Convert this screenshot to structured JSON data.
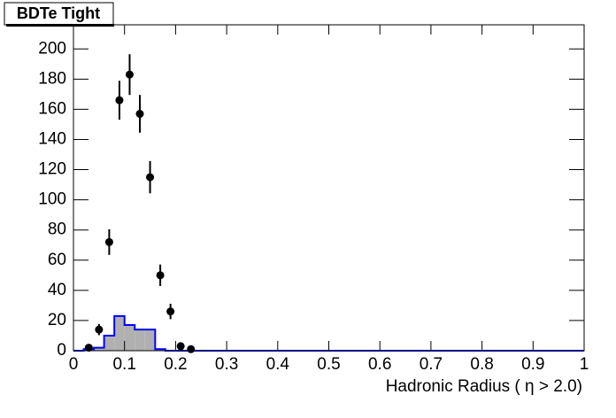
{
  "chart_data": {
    "type": "histogram",
    "title": "BDTe Tight",
    "x_label": "Hadronic Radius ( η > 2.0)",
    "bins": [
      0,
      0.02,
      0.04,
      0.06,
      0.08,
      0.1,
      0.12,
      0.14,
      0.16,
      0.18,
      0.2,
      0.22,
      0.24,
      0.26,
      0.28,
      0.3,
      0.32,
      0.34,
      0.36,
      0.38,
      0.4,
      0.42,
      0.44,
      0.46,
      0.48,
      0.5,
      0.52,
      0.54,
      0.56,
      0.58,
      0.6,
      0.62,
      0.64,
      0.66,
      0.68,
      0.7,
      0.72,
      0.74,
      0.76,
      0.78,
      0.8,
      0.82,
      0.84,
      0.86,
      0.88,
      0.9,
      0.92,
      0.94,
      0.96,
      0.98,
      1
    ],
    "counts": [
      0,
      1,
      2,
      10,
      23,
      17,
      14,
      14,
      1,
      0,
      0,
      0,
      0,
      0,
      0,
      0,
      0,
      0,
      0,
      0,
      0,
      0,
      0,
      0,
      0,
      0,
      0,
      0,
      0,
      0,
      0,
      0,
      0,
      0,
      0,
      0,
      0,
      0,
      0,
      0,
      0,
      0,
      0,
      0,
      0,
      0,
      0,
      0,
      0,
      0
    ],
    "color": "#0000ff",
    "fill": "#b0b0b0",
    "points": {
      "type": "scatter",
      "color": "#000000",
      "x": [
        0.03,
        0.05,
        0.07,
        0.09,
        0.11,
        0.13,
        0.15,
        0.17,
        0.19,
        0.21,
        0.23
      ],
      "values": [
        2,
        14,
        72,
        166,
        183,
        157,
        115,
        50,
        26,
        3,
        1
      ],
      "errors": [
        1.4,
        3.7,
        8.5,
        12.9,
        13.5,
        12.5,
        10.7,
        7.1,
        5.1,
        1.7,
        1
      ]
    },
    "xlim": [
      0,
      1
    ],
    "ylim": [
      0,
      216
    ],
    "xticks": [
      0,
      0.1,
      0.2,
      0.3,
      0.4,
      0.5,
      0.6,
      0.7,
      0.8,
      0.9,
      1
    ],
    "yticks": [
      0,
      20,
      40,
      60,
      80,
      100,
      120,
      140,
      160,
      180,
      200
    ]
  }
}
